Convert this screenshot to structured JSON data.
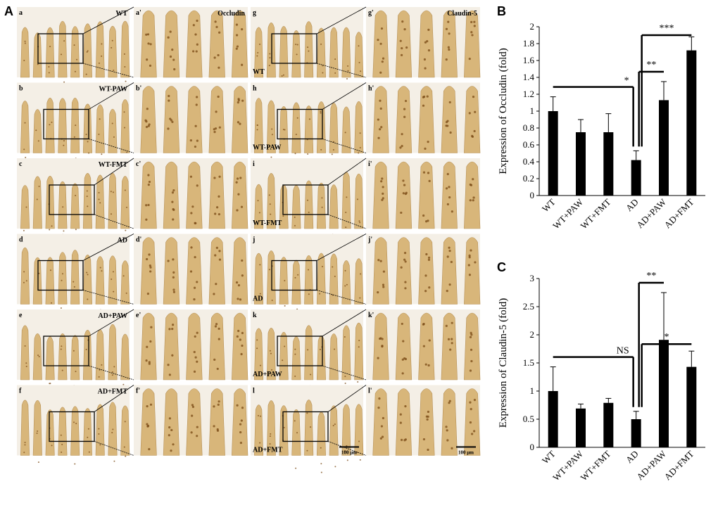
{
  "panel_letters": {
    "a": "A",
    "b": "B",
    "c": "C"
  },
  "micrographs": {
    "rows": [
      {
        "left": {
          "tag": "a",
          "group": "WT",
          "zoom_tag": "a'",
          "stain": "Occludin"
        },
        "right": {
          "tag": "g",
          "group": "WT",
          "zoom_tag": "g'",
          "stain": "Claudin-5"
        }
      },
      {
        "left": {
          "tag": "b",
          "group": "WT-PAW",
          "zoom_tag": "b'"
        },
        "right": {
          "tag": "h",
          "group": "WT-PAW",
          "zoom_tag": "h'"
        }
      },
      {
        "left": {
          "tag": "c",
          "group": "WT-FMT",
          "zoom_tag": "c'"
        },
        "right": {
          "tag": "i",
          "group": "WT-FMT",
          "zoom_tag": "i'"
        }
      },
      {
        "left": {
          "tag": "d",
          "group": "AD",
          "zoom_tag": "d'"
        },
        "right": {
          "tag": "j",
          "group": "AD",
          "zoom_tag": "j'"
        }
      },
      {
        "left": {
          "tag": "e",
          "group": "AD+PAW",
          "zoom_tag": "e'"
        },
        "right": {
          "tag": "k",
          "group": "AD+PAW",
          "zoom_tag": "k'"
        }
      },
      {
        "left": {
          "tag": "f",
          "group": "AD+FMT",
          "zoom_tag": "f'"
        },
        "right": {
          "tag": "l",
          "group": "AD+FMT",
          "zoom_tag": "l'"
        }
      }
    ],
    "scale_bar_label": "100 μm",
    "tissue_color": "#d8b67a",
    "stain_color": "#7a4a16"
  },
  "chart_data": [
    {
      "type": "bar",
      "panel": "B",
      "categories": [
        "WT",
        "WT+PAW",
        "WT+FMT",
        "AD",
        "AD+PAW",
        "AD+FMT"
      ],
      "values": [
        1.0,
        0.75,
        0.75,
        0.42,
        1.13,
        1.72
      ],
      "errors": [
        0.17,
        0.15,
        0.22,
        0.11,
        0.22,
        0.16
      ],
      "ylabel": "Expression of Occludin (fold)",
      "ylim": [
        0,
        2
      ],
      "yticks": [
        "0",
        "0.2",
        "0.4",
        "0.6",
        "0.8",
        "1",
        "1.2",
        "1.4",
        "1.6",
        "1.8",
        "2"
      ],
      "bar_color": "#000000",
      "grid": false,
      "annotations": [
        {
          "from": "WT",
          "to": "AD",
          "label": "*"
        },
        {
          "from": "AD",
          "to": "AD+PAW",
          "label": "**"
        },
        {
          "from": "AD",
          "to": "AD+FMT",
          "label": "***"
        }
      ]
    },
    {
      "type": "bar",
      "panel": "C",
      "categories": [
        "WT",
        "WT+PAW",
        "WT+FMT",
        "AD",
        "AD+PAW",
        "AD+FMT"
      ],
      "values": [
        1.0,
        0.69,
        0.79,
        0.5,
        1.91,
        1.43
      ],
      "errors": [
        0.43,
        0.08,
        0.08,
        0.14,
        0.84,
        0.28
      ],
      "ylabel": "Expression of Claudin-5 (fold)",
      "ylim": [
        0,
        3
      ],
      "yticks": [
        "0",
        "0.5",
        "1",
        "1.5",
        "2",
        "2.5",
        "3"
      ],
      "bar_color": "#000000",
      "grid": false,
      "annotations": [
        {
          "from": "WT",
          "to": "AD",
          "label": "NS"
        },
        {
          "from": "AD",
          "to": "AD+PAW",
          "label": "**"
        },
        {
          "from": "AD",
          "to": "AD+FMT",
          "label": "*"
        }
      ]
    }
  ]
}
